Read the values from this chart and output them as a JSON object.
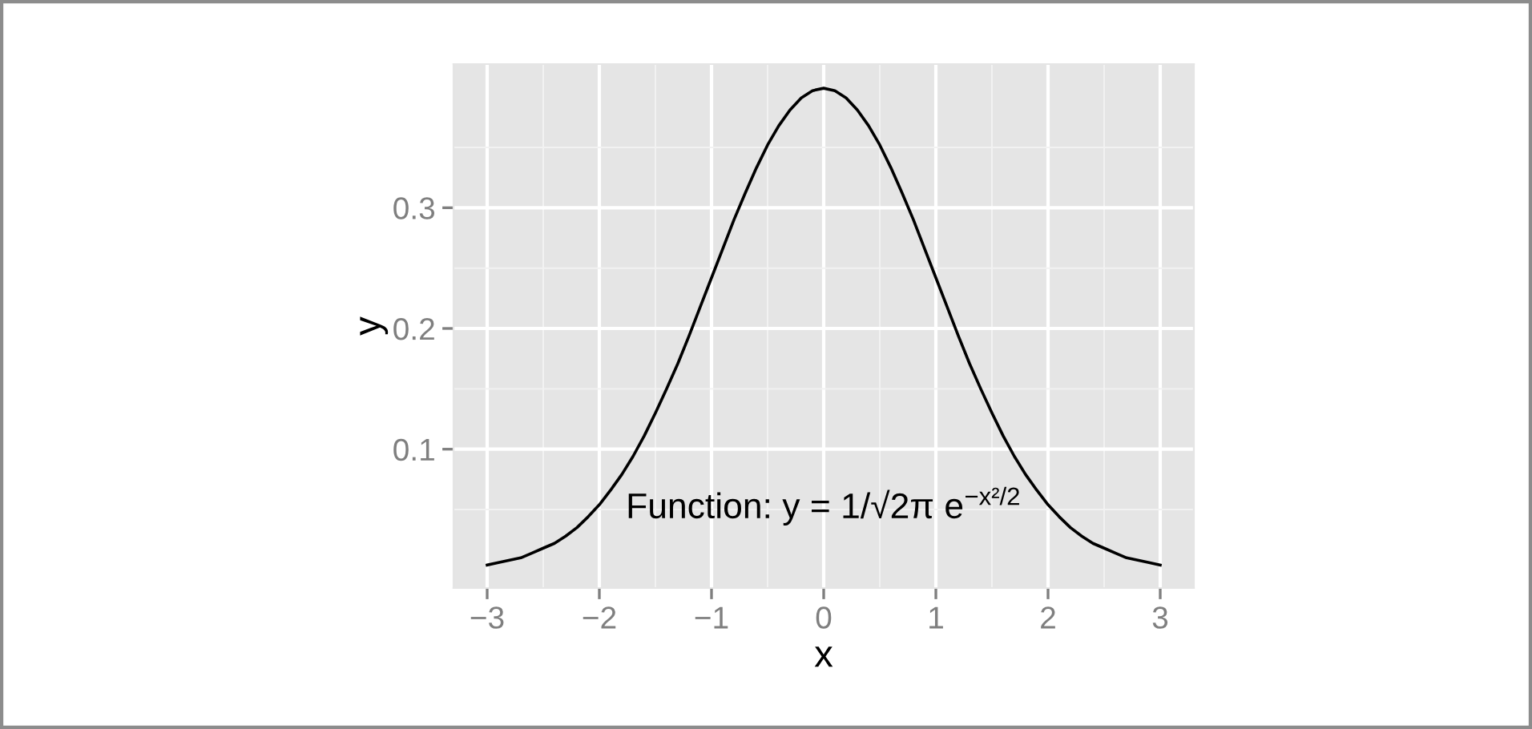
{
  "chart_data": {
    "type": "line",
    "xlabel": "x",
    "ylabel": "y",
    "x": [
      -3,
      -2.9,
      -2.8,
      -2.7,
      -2.6,
      -2.5,
      -2.4,
      -2.3,
      -2.2,
      -2.1,
      -2,
      -1.9,
      -1.8,
      -1.7,
      -1.6,
      -1.5,
      -1.4,
      -1.3,
      -1.2,
      -1.1,
      -1,
      -0.9,
      -0.8,
      -0.7,
      -0.6,
      -0.5,
      -0.4,
      -0.3,
      -0.2,
      -0.1,
      0,
      0.1,
      0.2,
      0.3,
      0.4,
      0.5,
      0.6,
      0.7,
      0.8,
      0.9,
      1,
      1.1,
      1.2,
      1.3,
      1.4,
      1.5,
      1.6,
      1.7,
      1.8,
      1.9,
      2,
      2.1,
      2.2,
      2.3,
      2.4,
      2.5,
      2.6,
      2.7,
      2.8,
      2.9,
      3
    ],
    "series": [
      {
        "color": "#000000",
        "values": [
          0.004,
          0.006,
          0.008,
          0.01,
          0.014,
          0.018,
          0.022,
          0.028,
          0.035,
          0.044,
          0.054,
          0.066,
          0.079,
          0.094,
          0.111,
          0.13,
          0.15,
          0.171,
          0.194,
          0.218,
          0.242,
          0.266,
          0.29,
          0.312,
          0.333,
          0.352,
          0.368,
          0.381,
          0.391,
          0.397,
          0.399,
          0.397,
          0.391,
          0.381,
          0.368,
          0.352,
          0.333,
          0.312,
          0.29,
          0.266,
          0.242,
          0.218,
          0.194,
          0.171,
          0.15,
          0.13,
          0.111,
          0.094,
          0.079,
          0.066,
          0.054,
          0.044,
          0.035,
          0.028,
          0.022,
          0.018,
          0.014,
          0.01,
          0.008,
          0.006,
          0.004
        ]
      }
    ],
    "xlim": [
      -3.3,
      3.3
    ],
    "ylim": [
      -0.015,
      0.419
    ],
    "xticks": [
      {
        "value": -3,
        "label": "−3"
      },
      {
        "value": -2,
        "label": "−2"
      },
      {
        "value": -1,
        "label": "−1"
      },
      0,
      1,
      2,
      3
    ],
    "yticks": [
      0.1,
      0.2,
      0.3
    ],
    "grid": true,
    "marker": "none",
    "line_style": "solid",
    "annotations": [
      "Function: y = 1/√2π e$^{−x²/2}$"
    ]
  }
}
